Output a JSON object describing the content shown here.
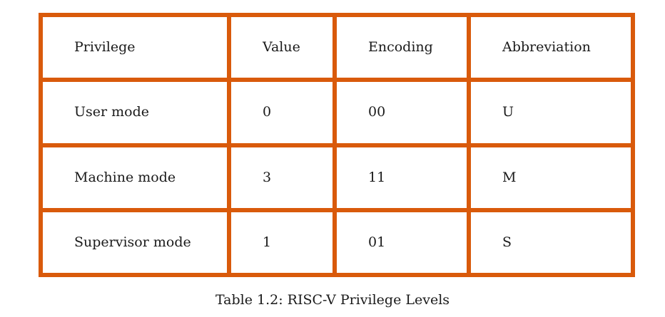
{
  "table": {
    "header": [
      "Privilege",
      "Value",
      "Encoding",
      "Abbreviation"
    ],
    "rows": [
      [
        "User mode",
        "0",
        "00",
        "U"
      ],
      [
        "Machine mode",
        "3",
        "11",
        "M"
      ],
      [
        "Supervisor mode",
        "1",
        "01",
        "S"
      ]
    ],
    "border_color": "#d95a0b"
  },
  "caption": "Table 1.2: RISC-V Privilege Levels"
}
